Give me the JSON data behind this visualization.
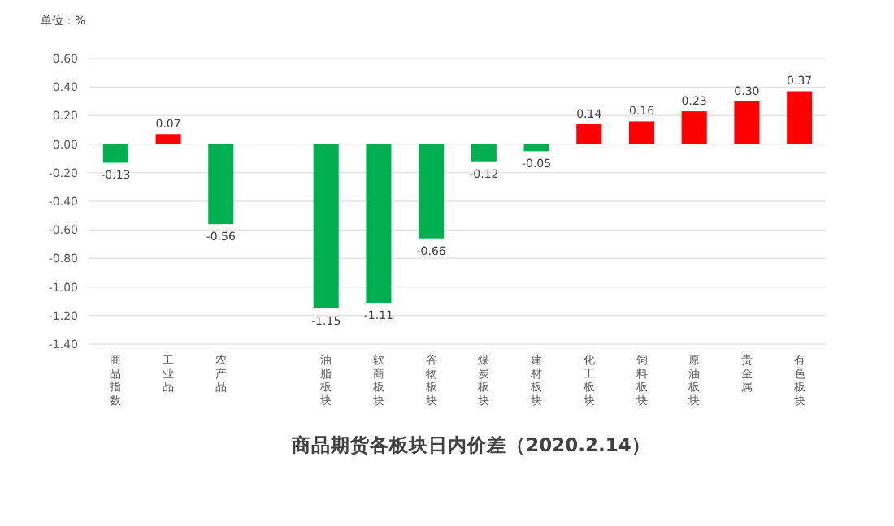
{
  "chart_data": {
    "type": "bar",
    "title": "商品期货各板块日内价差（2020.2.14）",
    "ylabel": "单位：%",
    "categories": [
      "商品指数",
      "工业品",
      "农产品",
      null,
      "油脂板块",
      "软商板块",
      "谷物板块",
      "煤炭板块",
      "建材板块",
      "化工板块",
      "饲料板块",
      "原油板块",
      "贵金属",
      "有色板块"
    ],
    "values": [
      -0.13,
      0.07,
      -0.56,
      null,
      -1.15,
      -1.11,
      -0.66,
      -0.12,
      -0.05,
      0.14,
      0.16,
      0.23,
      0.3,
      0.37
    ],
    "colors": [
      "#00b050",
      "#ff0000",
      "#00b050",
      null,
      "#00b050",
      "#00b050",
      "#00b050",
      "#00b050",
      "#00b050",
      "#ff0000",
      "#ff0000",
      "#ff0000",
      "#ff0000",
      "#ff0000"
    ],
    "value_labels": [
      "-0.13",
      "0.07",
      "-0.56",
      null,
      "-1.15",
      "-1.11",
      "-0.66",
      "-0.12",
      "-0.05",
      "0.14",
      "0.16",
      "0.23",
      "0.30",
      "0.37"
    ],
    "ylim": [
      -1.4,
      0.6
    ],
    "yticks": [
      {
        "value": 0.6,
        "label": "0.60"
      },
      {
        "value": 0.4,
        "label": "0.40"
      },
      {
        "value": 0.2,
        "label": "0.20"
      },
      {
        "value": 0,
        "label": "0.00"
      },
      {
        "value": -0.2,
        "label": "-0.20"
      },
      {
        "value": -0.4,
        "label": "-0.40"
      },
      {
        "value": -0.6,
        "label": "-0.60"
      },
      {
        "value": -0.8,
        "label": "-0.80"
      },
      {
        "value": -1,
        "label": "-1.00"
      },
      {
        "value": -1.2,
        "label": "-1.20"
      },
      {
        "value": -1.4,
        "label": "-1.40"
      }
    ],
    "grid": "y"
  }
}
